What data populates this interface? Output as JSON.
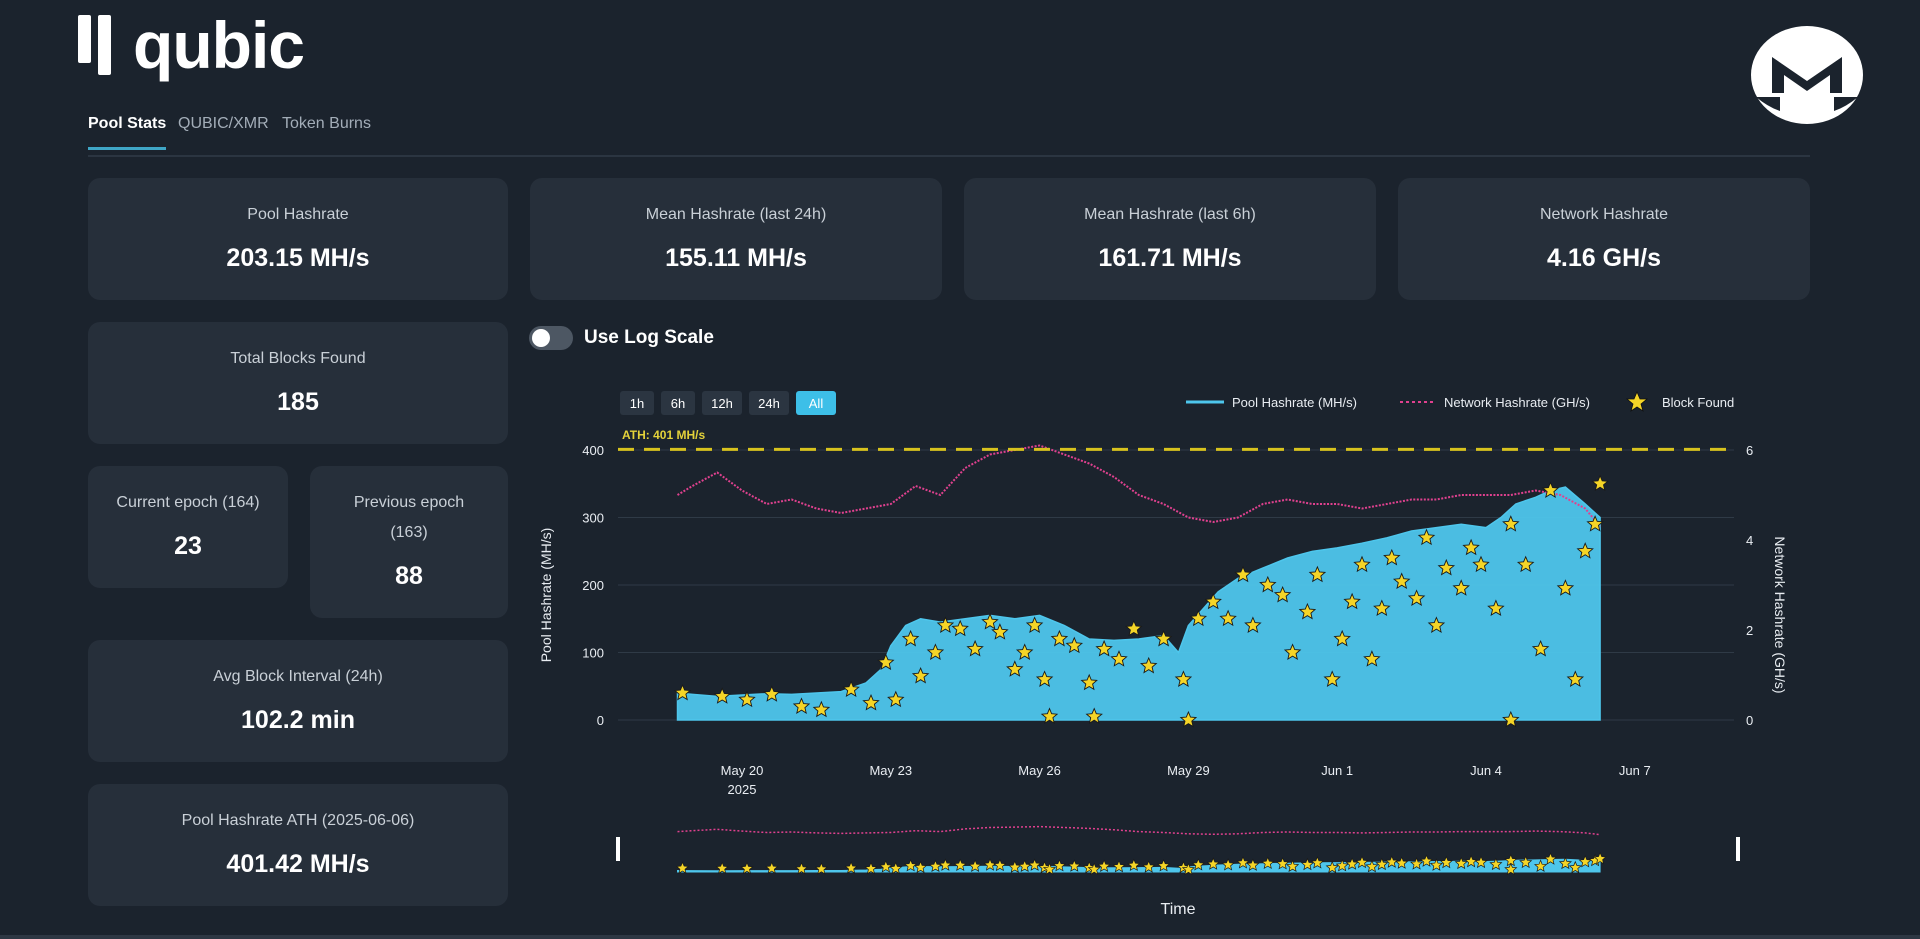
{
  "brand": {
    "name": "qubic"
  },
  "icons": {
    "logo": "qubic-logo-icon",
    "monero": "monero-logo-icon"
  },
  "tabs": [
    {
      "label": "Pool Stats",
      "active": true
    },
    {
      "label": "QUBIC/XMR",
      "active": false
    },
    {
      "label": "Token Burns",
      "active": false
    }
  ],
  "stats": {
    "pool_hashrate": {
      "label": "Pool Hashrate",
      "value": "203.15 MH/s"
    },
    "mean_24h": {
      "label": "Mean Hashrate (last 24h)",
      "value": "155.11 MH/s"
    },
    "mean_6h": {
      "label": "Mean Hashrate (last 6h)",
      "value": "161.71 MH/s"
    },
    "network_hashrate": {
      "label": "Network Hashrate",
      "value": "4.16 GH/s"
    },
    "total_blocks": {
      "label": "Total Blocks Found",
      "value": "185"
    },
    "current_epoch": {
      "label": "Current epoch (164)",
      "value": "23"
    },
    "previous_epoch": {
      "label_line1": "Previous epoch",
      "label_line2": "(163)",
      "value": "88"
    },
    "avg_block_interval": {
      "label": "Avg Block Interval (24h)",
      "value": "102.2 min"
    },
    "ath": {
      "label": "Pool Hashrate ATH (2025-06-06)",
      "value": "401.42 MH/s"
    }
  },
  "toggle": {
    "label": "Use Log Scale",
    "on": false
  },
  "chart_data": {
    "type": "line",
    "range_buttons": [
      "1h",
      "6h",
      "12h",
      "24h",
      "All"
    ],
    "active_range": "All",
    "ath_label": "ATH: 401 MH/s",
    "ath_value": 401,
    "xlabel": "Time",
    "ylabel": "Pool Hashrate (MH/s)",
    "y2label": "Network Hashrate (GH/s)",
    "ylim": [
      0,
      400
    ],
    "y2lim": [
      0,
      6
    ],
    "yticks": [
      "0",
      "100",
      "200",
      "300",
      "400"
    ],
    "y2ticks": [
      "0",
      "2",
      "4",
      "6"
    ],
    "xlim": [
      17.5,
      37.0
    ],
    "xticks": [
      {
        "day": 20,
        "label": "May 20",
        "sub": "2025"
      },
      {
        "day": 23,
        "label": "May 23",
        "sub": ""
      },
      {
        "day": 26,
        "label": "May 26",
        "sub": ""
      },
      {
        "day": 29,
        "label": "May 29",
        "sub": ""
      },
      {
        "day": 32,
        "label": "Jun 1",
        "sub": ""
      },
      {
        "day": 35,
        "label": "Jun 4",
        "sub": ""
      },
      {
        "day": 38,
        "label": "Jun 7",
        "sub": ""
      }
    ],
    "legend": [
      "Pool Hashrate (MH/s)",
      "Network Hashrate (GH/s)",
      "Block Found"
    ],
    "colors": {
      "pool": "#4ec6ec",
      "network": "#e0418f",
      "block": "#f5d527",
      "ath": "#d7c21e"
    },
    "series": [
      {
        "name": "Pool Hashrate (MH/s)",
        "x": [
          18.7,
          19.0,
          19.5,
          20.0,
          20.5,
          21.0,
          21.5,
          22.0,
          22.5,
          22.8,
          23.0,
          23.3,
          23.6,
          24.0,
          24.5,
          25.0,
          25.5,
          26.0,
          26.5,
          27.0,
          27.5,
          28.0,
          28.5,
          28.8,
          29.0,
          29.3,
          29.6,
          30.0,
          30.5,
          31.0,
          31.5,
          32.0,
          32.5,
          33.0,
          33.5,
          34.0,
          34.5,
          35.0,
          35.3,
          35.6,
          36.0,
          36.3,
          36.6,
          37.0,
          37.3
        ],
        "y": [
          40,
          38,
          35,
          37,
          39,
          38,
          40,
          42,
          55,
          75,
          110,
          140,
          150,
          145,
          150,
          155,
          150,
          155,
          140,
          120,
          118,
          120,
          125,
          100,
          140,
          165,
          190,
          210,
          225,
          240,
          250,
          255,
          262,
          270,
          280,
          285,
          290,
          285,
          300,
          320,
          330,
          340,
          345,
          320,
          300
        ]
      },
      {
        "name": "Network Hashrate (GH/s)",
        "x": [
          18.7,
          19.0,
          19.5,
          20.0,
          20.5,
          21.0,
          21.5,
          22.0,
          22.5,
          23.0,
          23.5,
          24.0,
          24.5,
          25.0,
          25.5,
          26.0,
          26.5,
          27.0,
          27.5,
          28.0,
          28.5,
          29.0,
          29.5,
          30.0,
          30.5,
          31.0,
          31.5,
          32.0,
          32.5,
          33.0,
          33.5,
          34.0,
          34.5,
          35.0,
          35.5,
          36.0,
          36.5,
          37.0,
          37.3
        ],
        "y": [
          5.0,
          5.2,
          5.5,
          5.1,
          4.8,
          4.9,
          4.7,
          4.6,
          4.7,
          4.8,
          5.2,
          5.0,
          5.6,
          5.9,
          6.0,
          6.1,
          5.9,
          5.7,
          5.4,
          5.0,
          4.8,
          4.5,
          4.4,
          4.5,
          4.8,
          4.9,
          4.8,
          4.8,
          4.7,
          4.8,
          4.9,
          4.9,
          5.0,
          5.0,
          5.0,
          5.1,
          5.0,
          4.7,
          4.3
        ]
      }
    ],
    "blocks": [
      {
        "x": 18.8,
        "y": 40
      },
      {
        "x": 19.6,
        "y": 35
      },
      {
        "x": 20.1,
        "y": 30
      },
      {
        "x": 20.6,
        "y": 38
      },
      {
        "x": 21.2,
        "y": 20
      },
      {
        "x": 21.6,
        "y": 15
      },
      {
        "x": 22.2,
        "y": 45
      },
      {
        "x": 22.6,
        "y": 25
      },
      {
        "x": 22.9,
        "y": 85
      },
      {
        "x": 23.1,
        "y": 30
      },
      {
        "x": 23.4,
        "y": 120
      },
      {
        "x": 23.6,
        "y": 65
      },
      {
        "x": 23.9,
        "y": 100
      },
      {
        "x": 24.1,
        "y": 140
      },
      {
        "x": 24.4,
        "y": 135
      },
      {
        "x": 24.7,
        "y": 105
      },
      {
        "x": 25.0,
        "y": 145
      },
      {
        "x": 25.2,
        "y": 130
      },
      {
        "x": 25.5,
        "y": 75
      },
      {
        "x": 25.7,
        "y": 100
      },
      {
        "x": 25.9,
        "y": 140
      },
      {
        "x": 26.1,
        "y": 60
      },
      {
        "x": 26.4,
        "y": 120
      },
      {
        "x": 26.7,
        "y": 110
      },
      {
        "x": 27.0,
        "y": 55
      },
      {
        "x": 27.3,
        "y": 105
      },
      {
        "x": 27.6,
        "y": 90
      },
      {
        "x": 27.9,
        "y": 135
      },
      {
        "x": 28.2,
        "y": 80
      },
      {
        "x": 28.5,
        "y": 120
      },
      {
        "x": 28.9,
        "y": 60
      },
      {
        "x": 29.2,
        "y": 150
      },
      {
        "x": 29.5,
        "y": 175
      },
      {
        "x": 29.8,
        "y": 150
      },
      {
        "x": 30.1,
        "y": 215
      },
      {
        "x": 30.3,
        "y": 140
      },
      {
        "x": 30.6,
        "y": 200
      },
      {
        "x": 30.9,
        "y": 185
      },
      {
        "x": 31.1,
        "y": 100
      },
      {
        "x": 31.4,
        "y": 160
      },
      {
        "x": 31.6,
        "y": 215
      },
      {
        "x": 31.9,
        "y": 60
      },
      {
        "x": 32.1,
        "y": 120
      },
      {
        "x": 32.3,
        "y": 175
      },
      {
        "x": 32.5,
        "y": 230
      },
      {
        "x": 32.7,
        "y": 90
      },
      {
        "x": 32.9,
        "y": 165
      },
      {
        "x": 33.1,
        "y": 240
      },
      {
        "x": 33.3,
        "y": 205
      },
      {
        "x": 33.6,
        "y": 180
      },
      {
        "x": 33.8,
        "y": 270
      },
      {
        "x": 34.0,
        "y": 140
      },
      {
        "x": 34.2,
        "y": 225
      },
      {
        "x": 34.5,
        "y": 195
      },
      {
        "x": 34.7,
        "y": 255
      },
      {
        "x": 34.9,
        "y": 230
      },
      {
        "x": 35.2,
        "y": 165
      },
      {
        "x": 35.5,
        "y": 290
      },
      {
        "x": 35.8,
        "y": 230
      },
      {
        "x": 36.1,
        "y": 105
      },
      {
        "x": 36.3,
        "y": 340
      },
      {
        "x": 36.6,
        "y": 195
      },
      {
        "x": 36.8,
        "y": 60
      },
      {
        "x": 37.0,
        "y": 250
      },
      {
        "x": 37.2,
        "y": 290
      },
      {
        "x": 37.3,
        "y": 350
      },
      {
        "x": 26.2,
        "y": 5
      },
      {
        "x": 27.1,
        "y": 5
      },
      {
        "x": 29.0,
        "y": 0
      },
      {
        "x": 35.5,
        "y": 0
      }
    ]
  }
}
